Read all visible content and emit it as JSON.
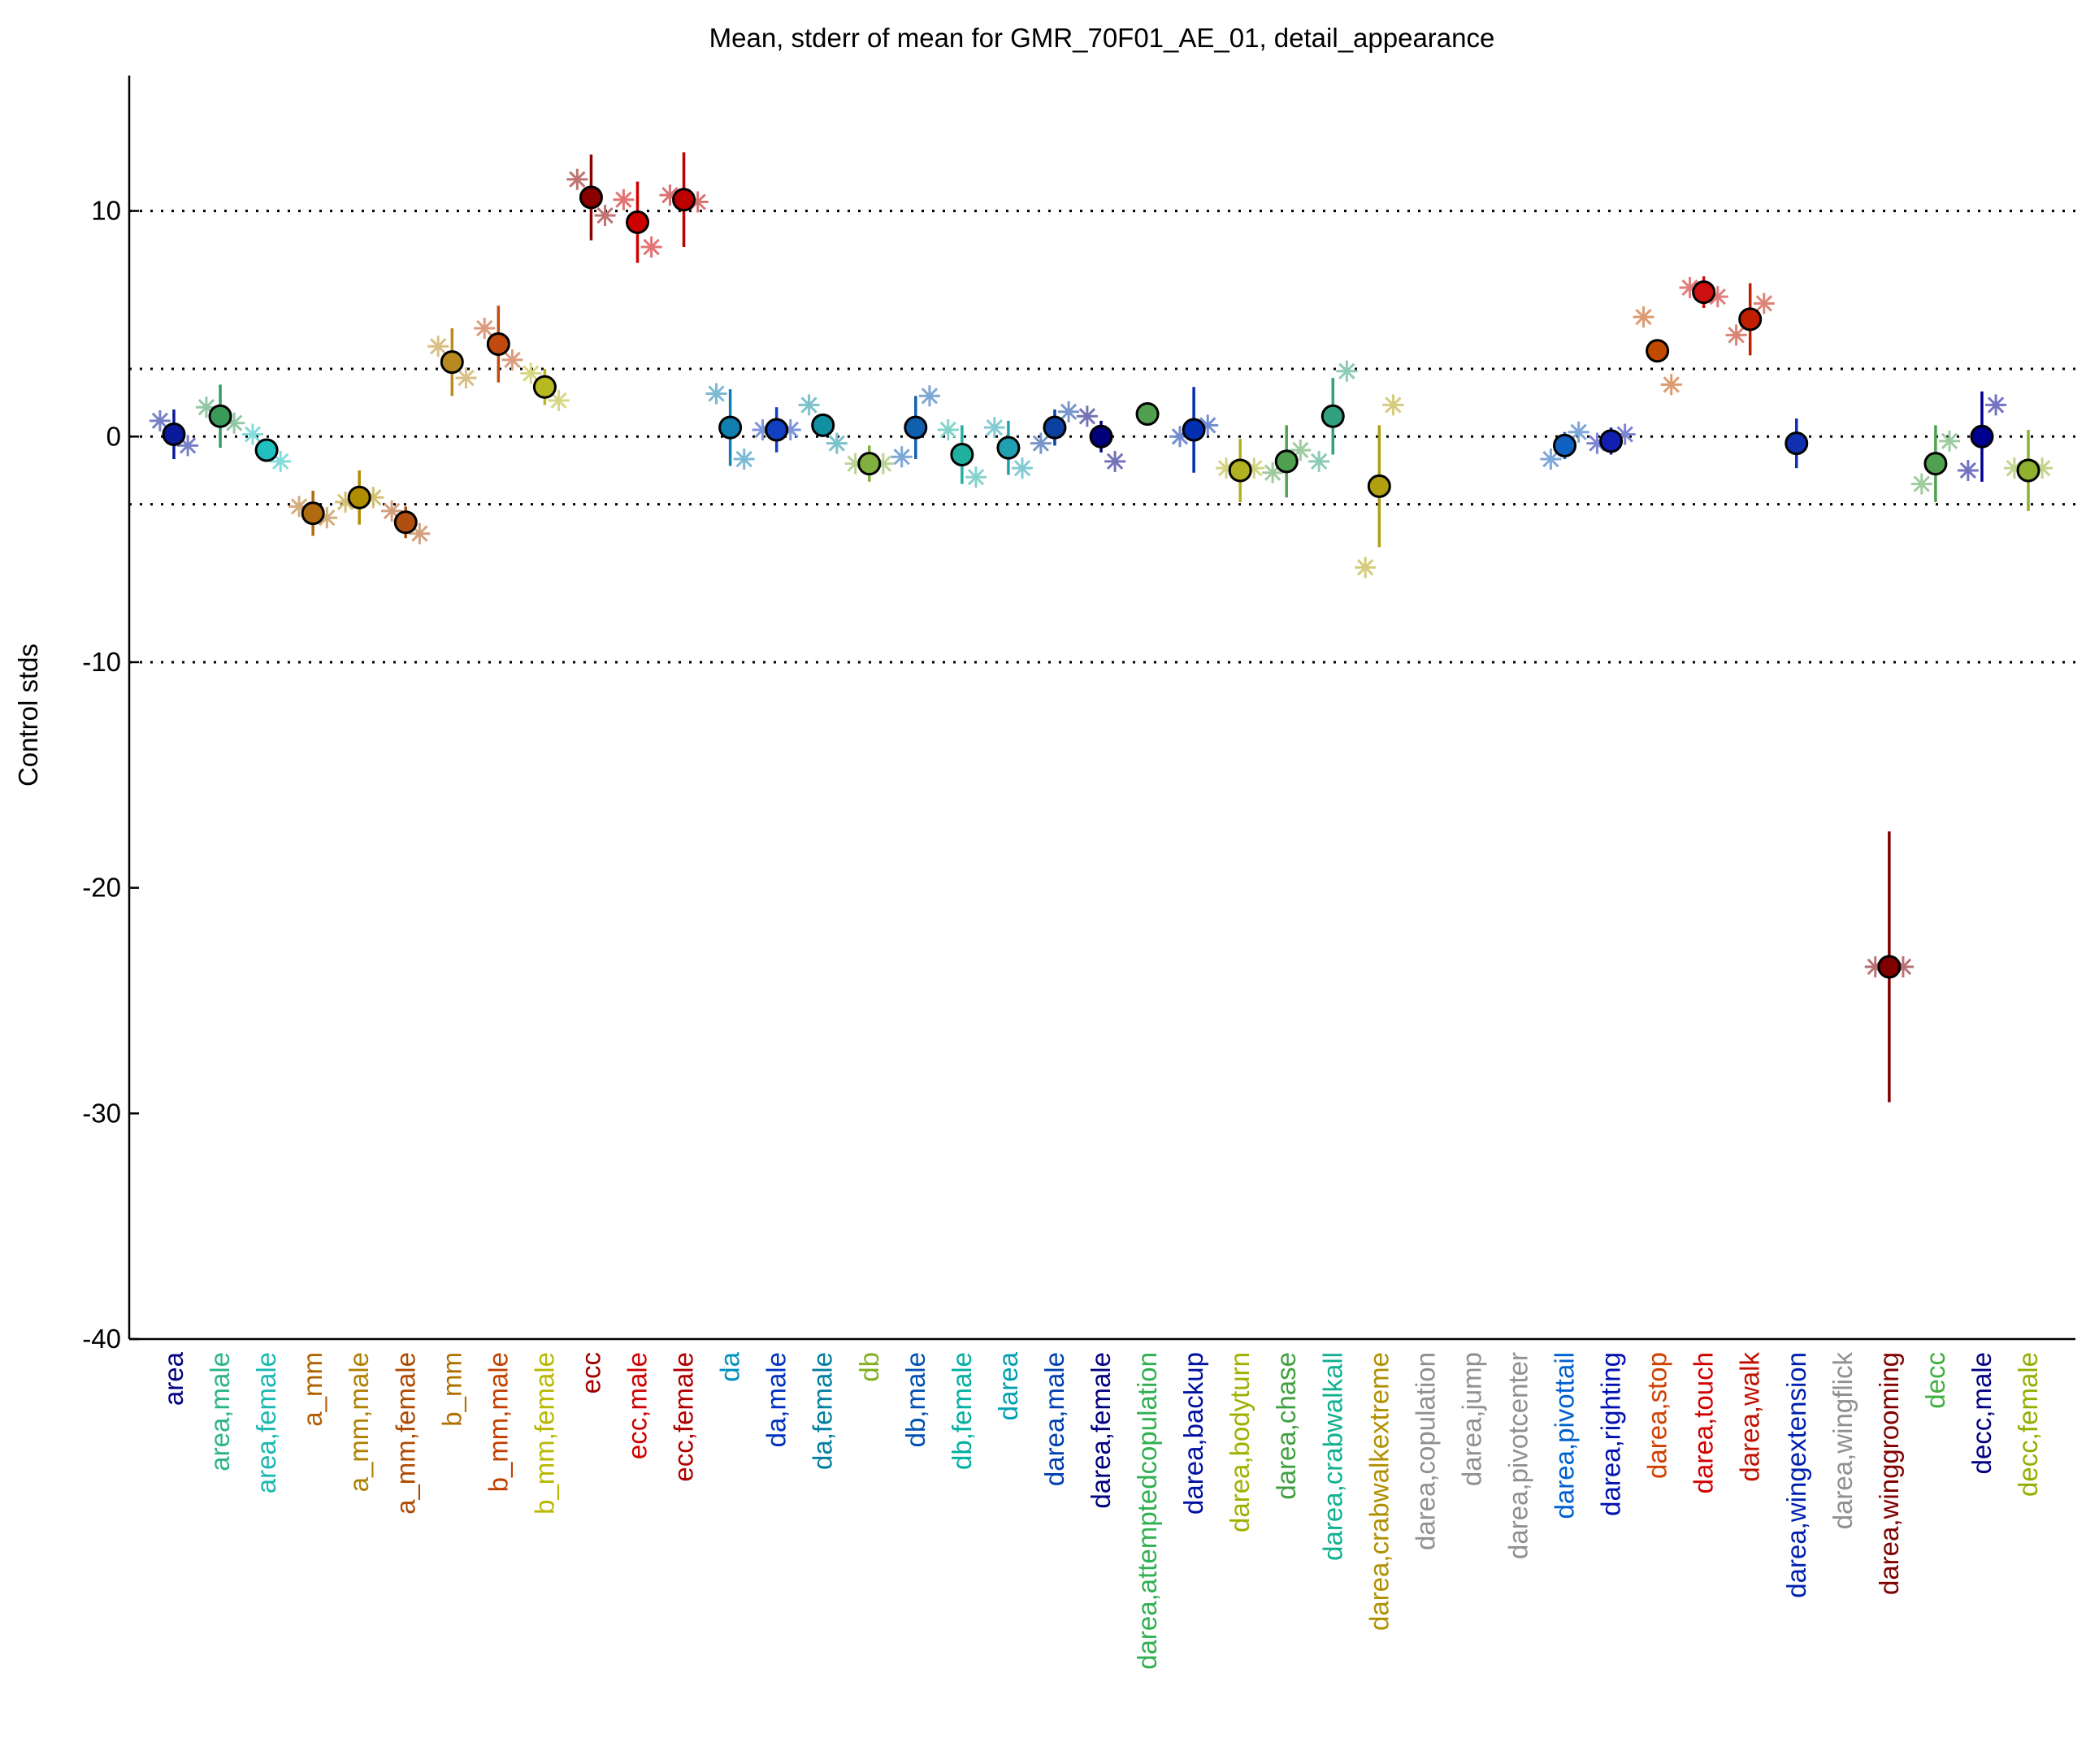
{
  "chart_data": {
    "type": "errorbar",
    "title": "Mean, stderr of mean for GMR_70F01_AE_01, detail_appearance",
    "ylabel": "Control stds",
    "categories": [
      "area",
      "area,male",
      "area,female",
      "a_mm",
      "a_mm,male",
      "a_mm,female",
      "b_mm",
      "b_mm,male",
      "b_mm,female",
      "ecc",
      "ecc,male",
      "ecc,female",
      "da",
      "da,male",
      "da,female",
      "db",
      "db,male",
      "db,female",
      "darea",
      "darea,male",
      "darea,female",
      "darea,attemptedcopulation",
      "darea,backup",
      "darea,bodyturn",
      "darea,chase",
      "darea,crabwalkall",
      "darea,crabwalkextreme",
      "darea,copulation",
      "darea,jump",
      "darea,pivotcenter",
      "darea,pivottail",
      "darea,righting",
      "darea,stop",
      "darea,touch",
      "darea,walk",
      "darea,wingextension",
      "darea,wingflick",
      "darea,winggrooming",
      "decc",
      "decc,male",
      "decc,female"
    ],
    "label_colors": [
      "#000080",
      "#2db38a",
      "#1ab8b0",
      "#b06000",
      "#b08000",
      "#b04a00",
      "#b07000",
      "#c04000",
      "#b8b800",
      "#a00000",
      "#d00000",
      "#b00000",
      "#0090c0",
      "#0030c0",
      "#0080a0",
      "#80b020",
      "#0050b0",
      "#00b0a0",
      "#00a0b0",
      "#0040b0",
      "#000080",
      "#30b050",
      "#0010a0",
      "#a0b000",
      "#40a040",
      "#10b090",
      "#b09000",
      "#909090",
      "#909090",
      "#909090",
      "#0060d0",
      "#0010b0",
      "#d04000",
      "#d00000",
      "#c01000",
      "#0020b0",
      "#909090",
      "#800000",
      "#40b040",
      "#000080",
      "#90b000"
    ],
    "marker_colors": [
      "#0a1a9a",
      "#3a9a5a",
      "#20c0c0",
      "#b06a10",
      "#b08c00",
      "#b05010",
      "#b88a20",
      "#c04a10",
      "#b8b820",
      "#8a0000",
      "#cc0000",
      "#bb0000",
      "#1080b0",
      "#1040c0",
      "#1090a0",
      "#80b040",
      "#1060b0",
      "#20b0a0",
      "#20a0b0",
      "#0a40a0",
      "#00007a",
      "#50a050",
      "#0030b0",
      "#b0b020",
      "#50a050",
      "#30a080",
      "#b0a010",
      "#909090",
      "#909090",
      "#909090",
      "#1060c0",
      "#1020b0",
      "#c04a00",
      "#cc1010",
      "#c02000",
      "#1030b0",
      "#909090",
      "#800000",
      "#50a050",
      "#000090",
      "#90b030"
    ],
    "values": [
      0.1,
      0.9,
      -0.6,
      -3.4,
      -2.7,
      -3.8,
      3.3,
      4.1,
      2.2,
      10.6,
      9.5,
      10.5,
      0.4,
      0.3,
      0.5,
      -1.2,
      0.4,
      -0.8,
      -0.5,
      0.4,
      0.0,
      1.0,
      0.3,
      -1.5,
      -1.1,
      0.9,
      -2.2,
      null,
      null,
      null,
      -0.4,
      -0.2,
      3.8,
      6.4,
      5.2,
      -0.3,
      null,
      -23.5,
      -1.2,
      0.0,
      -1.5
    ],
    "errors": [
      1.1,
      1.4,
      0.5,
      1.0,
      1.2,
      0.7,
      1.5,
      1.7,
      0.8,
      1.9,
      1.8,
      2.1,
      1.7,
      1.0,
      0.5,
      0.8,
      1.4,
      1.3,
      1.2,
      0.8,
      0.7,
      null,
      1.9,
      1.4,
      1.6,
      1.7,
      2.7,
      null,
      null,
      null,
      0.6,
      0.6,
      null,
      0.7,
      1.6,
      1.1,
      null,
      6.0,
      1.7,
      2.0,
      1.8
    ],
    "asterisks_left": [
      0.7,
      1.3,
      0.1,
      -3.1,
      -2.9,
      -3.3,
      4.0,
      4.8,
      2.8,
      11.4,
      10.5,
      10.7,
      1.9,
      0.3,
      1.4,
      -1.2,
      -0.9,
      0.3,
      0.4,
      -0.3,
      0.9,
      null,
      0.0,
      -1.4,
      -1.6,
      -1.1,
      -5.8,
      null,
      null,
      null,
      -1.0,
      -0.3,
      5.3,
      6.6,
      4.5,
      null,
      null,
      -23.5,
      -2.1,
      -1.5,
      -1.4
    ],
    "asterisks_right": [
      -0.4,
      0.6,
      -1.1,
      -3.6,
      -2.7,
      -4.3,
      2.6,
      3.4,
      1.6,
      9.8,
      8.4,
      10.4,
      -1.0,
      0.3,
      -0.3,
      -1.2,
      1.8,
      -1.8,
      -1.4,
      1.1,
      -1.1,
      null,
      0.5,
      -1.4,
      -0.6,
      2.9,
      1.4,
      null,
      null,
      null,
      0.2,
      0.1,
      2.3,
      6.2,
      5.9,
      null,
      null,
      -23.5,
      -0.2,
      1.4,
      -1.4
    ],
    "ylim": [
      -40,
      16
    ],
    "yticks": [
      -40,
      -30,
      -20,
      -10,
      0,
      10
    ],
    "hlines": [
      -10,
      -3,
      0,
      3,
      10
    ]
  }
}
